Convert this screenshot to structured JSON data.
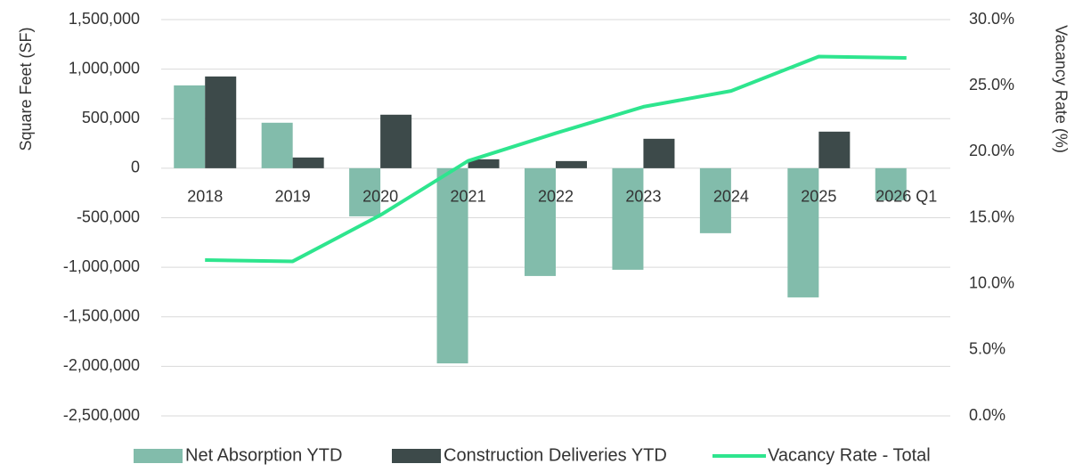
{
  "chart_data": {
    "type": "bar",
    "categories": [
      "2018",
      "2019",
      "2020",
      "2021",
      "2022",
      "2023",
      "2024",
      "2025",
      "2026 Q1"
    ],
    "ylabel": "Square Feet (SF)",
    "y2label": "Vacancy Rate (%)",
    "series": [
      {
        "name": "Net Absorption YTD",
        "color": "#82bcab",
        "values": [
          836000,
          459000,
          -486000,
          -1970000,
          -1088000,
          -1025000,
          -656000,
          -1304000,
          -324000
        ]
      },
      {
        "name": "Construction Deliveries YTD",
        "color": "#3d4a4a",
        "values": [
          926000,
          108000,
          540000,
          90000,
          72000,
          297000,
          0,
          369000,
          0
        ]
      },
      {
        "name": "Vacancy Rate - Total",
        "type": "line",
        "axis": "y2",
        "color": "#2ee58e",
        "values": [
          11.8,
          11.7,
          15.2,
          19.3,
          21.4,
          23.4,
          24.6,
          27.2,
          27.1
        ]
      }
    ],
    "ylim": [
      -2500000,
      1500000
    ],
    "yticks": [
      {
        "value": 1500000,
        "label": "1,500,000"
      },
      {
        "value": 1000000,
        "label": "1,000,000"
      },
      {
        "value": 500000,
        "label": "500,000"
      },
      0,
      {
        "value": -500000,
        "label": "-500,000"
      },
      {
        "value": -1000000,
        "label": "-1,000,000"
      },
      {
        "value": -1500000,
        "label": "-1,500,000"
      },
      {
        "value": -2000000,
        "label": "-2,000,000"
      },
      {
        "value": -2500000,
        "label": "-2,500,000"
      }
    ],
    "y2lim": [
      0,
      30
    ],
    "y2ticks": [
      {
        "value": 30,
        "label": "30.0%"
      },
      {
        "value": 25,
        "label": "25.0%"
      },
      {
        "value": 20,
        "label": "20.0%"
      },
      {
        "value": 15,
        "label": "15.0%"
      },
      {
        "value": 10,
        "label": "10.0%"
      },
      {
        "value": 5,
        "label": "5.0%"
      },
      {
        "value": 0,
        "label": "0.0%"
      }
    ],
    "grid": true,
    "legend": "bottom"
  }
}
